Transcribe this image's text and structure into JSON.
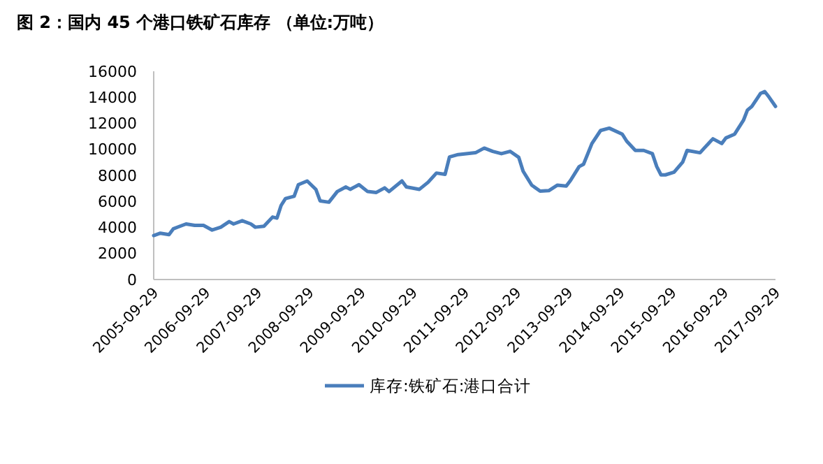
{
  "chart_data": {
    "type": "line",
    "title": "图 2：国内 45 个港口铁矿石库存 （单位:万吨）",
    "x": [
      "2005-09-29",
      "2005-11",
      "2006-01",
      "2006-02",
      "2006-05",
      "2006-07",
      "2006-09",
      "2006-11",
      "2007-01",
      "2007-03",
      "2007-04",
      "2007-06",
      "2007-08",
      "2007-09",
      "2007-11",
      "2008-01",
      "2008-02",
      "2008-03",
      "2008-04",
      "2008-06",
      "2008-07",
      "2008-09",
      "2008-11",
      "2008-12",
      "2009-02",
      "2009-04",
      "2009-06",
      "2009-07",
      "2009-09",
      "2009-11",
      "2010-01",
      "2010-03",
      "2010-04",
      "2010-07",
      "2010-08",
      "2010-11",
      "2011-01",
      "2011-03",
      "2011-05",
      "2011-06",
      "2011-08",
      "2011-12",
      "2012-02",
      "2012-04",
      "2012-06",
      "2012-08",
      "2012-10",
      "2012-11",
      "2013-01",
      "2013-03",
      "2013-05",
      "2013-07",
      "2013-09",
      "2013-10",
      "2013-12",
      "2014-01",
      "2014-03",
      "2014-05",
      "2014-07",
      "2014-10",
      "2014-11",
      "2015-01",
      "2015-03",
      "2015-05",
      "2015-06",
      "2015-07",
      "2015-08",
      "2015-10",
      "2015-12",
      "2016-01",
      "2016-04",
      "2016-05",
      "2016-07",
      "2016-09",
      "2016-10",
      "2016-12",
      "2017-02",
      "2017-03",
      "2017-04",
      "2017-06",
      "2017-07",
      "2017-08",
      "2017-09-29"
    ],
    "series": [
      {
        "name": "库存:铁矿石:港口合计",
        "color": "#4a7ebb",
        "values": [
          3380,
          3560,
          3450,
          3900,
          4270,
          4160,
          4160,
          3800,
          4020,
          4450,
          4270,
          4520,
          4270,
          4020,
          4090,
          4800,
          4720,
          5690,
          6220,
          6400,
          7290,
          7570,
          6930,
          6040,
          5940,
          6760,
          7110,
          6930,
          7290,
          6760,
          6690,
          7040,
          6760,
          7570,
          7110,
          6930,
          7470,
          8180,
          8080,
          9420,
          9600,
          9740,
          10100,
          9850,
          9670,
          9850,
          9390,
          8320,
          7250,
          6790,
          6830,
          7250,
          7180,
          7610,
          8680,
          8860,
          10450,
          11450,
          11630,
          11170,
          10630,
          9920,
          9920,
          9670,
          8680,
          8040,
          8040,
          8250,
          9030,
          9920,
          9740,
          10100,
          10810,
          10450,
          10880,
          11170,
          12230,
          13010,
          13300,
          14290,
          14440,
          14010,
          13300
        ]
      }
    ],
    "xlim": [
      "2005-09-29",
      "2017-09-29"
    ],
    "xticks": [
      "2005-09-29",
      "2006-09-29",
      "2007-09-29",
      "2008-09-29",
      "2009-09-29",
      "2010-09-29",
      "2011-09-29",
      "2012-09-29",
      "2013-09-29",
      "2014-09-29",
      "2015-09-29",
      "2016-09-29",
      "2017-09-29"
    ],
    "ylim": [
      0,
      16000
    ],
    "yticks": [
      0,
      2000,
      4000,
      6000,
      8000,
      10000,
      12000,
      14000,
      16000
    ],
    "legend": "bottom",
    "line_style": "solid",
    "marker": "none",
    "grid": false
  }
}
